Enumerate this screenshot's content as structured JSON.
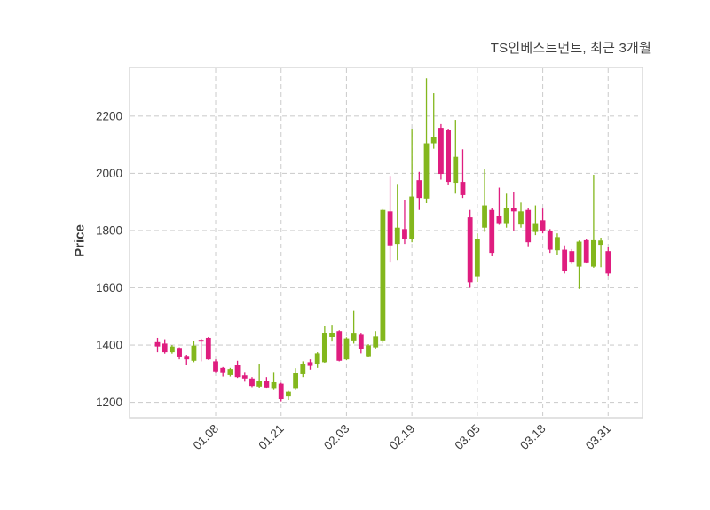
{
  "title": "TS인베스트먼트, 최근 3개월",
  "chart_data": {
    "type": "candlestick",
    "title": "TS인베스트먼트, 최근 3개월",
    "ylabel": "Price",
    "xlabel": "",
    "y_ticks": [
      1200,
      1400,
      1600,
      1800,
      2000,
      2200
    ],
    "ylim": [
      1146,
      2370
    ],
    "x_tick_labels": [
      "01.08",
      "01.21",
      "02.03",
      "02.19",
      "03.05",
      "03.18",
      "03.31"
    ],
    "x_tick_candle_indices": [
      8,
      17,
      26,
      35,
      44,
      53,
      62
    ],
    "grid": "dashed-both-axes",
    "legend": "none",
    "colors": {
      "up": "#83b71d",
      "down": "#df1d7f",
      "grid": "#cfcfcf",
      "border": "#d9d9d9",
      "text": "#3b3b3b",
      "title_text": "#3f3f3f",
      "background": "#ffffff"
    },
    "candle_format": [
      "open",
      "high",
      "low",
      "close"
    ],
    "candles": [
      [
        1410,
        1425,
        1375,
        1395
      ],
      [
        1405,
        1420,
        1370,
        1375
      ],
      [
        1375,
        1400,
        1370,
        1395
      ],
      [
        1390,
        1392,
        1350,
        1360
      ],
      [
        1362,
        1366,
        1330,
        1350
      ],
      [
        1345,
        1413,
        1340,
        1398
      ],
      [
        1418,
        1422,
        1343,
        1412
      ],
      [
        1425,
        1428,
        1348,
        1350
      ],
      [
        1343,
        1350,
        1305,
        1308
      ],
      [
        1320,
        1323,
        1290,
        1305
      ],
      [
        1295,
        1320,
        1290,
        1316
      ],
      [
        1330,
        1345,
        1285,
        1288
      ],
      [
        1294,
        1306,
        1272,
        1283
      ],
      [
        1283,
        1288,
        1253,
        1257
      ],
      [
        1255,
        1335,
        1250,
        1273
      ],
      [
        1275,
        1288,
        1248,
        1252
      ],
      [
        1247,
        1306,
        1243,
        1270
      ],
      [
        1265,
        1268,
        1203,
        1211
      ],
      [
        1220,
        1240,
        1208,
        1237
      ],
      [
        1247,
        1319,
        1243,
        1304
      ],
      [
        1298,
        1343,
        1288,
        1335
      ],
      [
        1340,
        1350,
        1314,
        1327
      ],
      [
        1335,
        1375,
        1320,
        1371
      ],
      [
        1340,
        1467,
        1338,
        1443
      ],
      [
        1428,
        1471,
        1412,
        1443
      ],
      [
        1449,
        1452,
        1343,
        1345
      ],
      [
        1350,
        1427,
        1347,
        1423
      ],
      [
        1416,
        1519,
        1405,
        1440
      ],
      [
        1436,
        1440,
        1371,
        1387
      ],
      [
        1361,
        1403,
        1357,
        1399
      ],
      [
        1392,
        1449,
        1388,
        1430
      ],
      [
        1416,
        1875,
        1407,
        1872
      ],
      [
        1867,
        1991,
        1691,
        1748
      ],
      [
        1753,
        1960,
        1697,
        1810
      ],
      [
        1805,
        1908,
        1753,
        1769
      ],
      [
        1771,
        2153,
        1759,
        1919
      ],
      [
        1976,
        2005,
        1872,
        1914
      ],
      [
        1912,
        2332,
        1896,
        2105
      ],
      [
        2105,
        2280,
        2086,
        2128
      ],
      [
        2159,
        2172,
        1978,
        1998
      ],
      [
        2150,
        2155,
        1958,
        1970
      ],
      [
        1967,
        2187,
        1929,
        2058
      ],
      [
        1970,
        2084,
        1914,
        1924
      ],
      [
        1846,
        1872,
        1600,
        1619
      ],
      [
        1640,
        1790,
        1620,
        1770
      ],
      [
        1810,
        2014,
        1795,
        1888
      ],
      [
        1872,
        1880,
        1710,
        1722
      ],
      [
        1852,
        1950,
        1820,
        1826
      ],
      [
        1826,
        1929,
        1810,
        1880
      ],
      [
        1880,
        1934,
        1800,
        1867
      ],
      [
        1821,
        1898,
        1810,
        1867
      ],
      [
        1872,
        1878,
        1745,
        1759
      ],
      [
        1795,
        1888,
        1784,
        1826
      ],
      [
        1836,
        1877,
        1790,
        1800
      ],
      [
        1800,
        1805,
        1722,
        1733
      ],
      [
        1731,
        1790,
        1715,
        1777
      ],
      [
        1733,
        1748,
        1650,
        1660
      ],
      [
        1728,
        1735,
        1683,
        1691
      ],
      [
        1674,
        1765,
        1596,
        1761
      ],
      [
        1766,
        1770,
        1685,
        1689
      ],
      [
        1674,
        1995,
        1670,
        1766
      ],
      [
        1750,
        1775,
        1672,
        1765
      ],
      [
        1728,
        1743,
        1642,
        1650
      ]
    ]
  }
}
